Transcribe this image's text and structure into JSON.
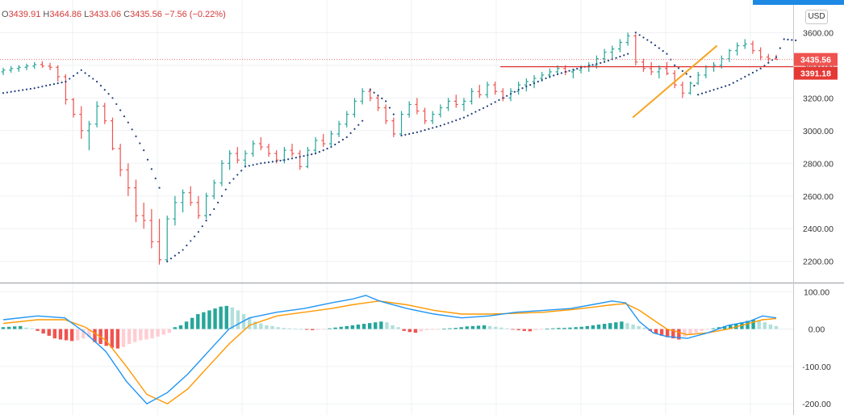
{
  "ohlc": {
    "open": "3439.91",
    "high": "3464.86",
    "low": "3433.06",
    "close": "3435.56",
    "change": "−7.56 (−0.22%)"
  },
  "currency_button": "USD",
  "price_tags": {
    "last_price": "3435.56",
    "horizontal_line": "3391.18"
  },
  "colors": {
    "up": "#26a69a",
    "down": "#ef5350",
    "sar": "#1f3d7a",
    "trendline": "#f5a623",
    "hline": "#e03030",
    "macd": "#2196f3",
    "signal": "#ff9800",
    "hist_up_strong": "#26a69a",
    "hist_up_weak": "#b2dfdb",
    "hist_down_strong": "#ef5350",
    "hist_down_weak": "#ffcdd2"
  },
  "chart_data": [
    {
      "type": "ohlc",
      "yaxis_ticks": [
        2200,
        2400,
        2600,
        2800,
        3000,
        3200,
        3400,
        3600
      ],
      "ylim": [
        2080,
        3760
      ],
      "last_price": 3435.56,
      "horizontal_line": 3391.18,
      "trendline": [
        [
          0.783,
          3080
        ],
        [
          0.913,
          3520
        ]
      ],
      "candles": [
        [
          3360,
          3385,
          3340,
          3370
        ],
        [
          3370,
          3395,
          3355,
          3380
        ],
        [
          3380,
          3400,
          3360,
          3388
        ],
        [
          3388,
          3410,
          3370,
          3395
        ],
        [
          3395,
          3420,
          3378,
          3405
        ],
        [
          3405,
          3425,
          3385,
          3395
        ],
        [
          3395,
          3415,
          3370,
          3388
        ],
        [
          3388,
          3400,
          3300,
          3330
        ],
        [
          3330,
          3345,
          3160,
          3190
        ],
        [
          3190,
          3200,
          3080,
          3100
        ],
        [
          3100,
          3150,
          2950,
          3000
        ],
        [
          3000,
          3060,
          2880,
          3040
        ],
        [
          3040,
          3180,
          3020,
          3150
        ],
        [
          3150,
          3170,
          3040,
          3060
        ],
        [
          3060,
          3080,
          2880,
          2890
        ],
        [
          2890,
          2920,
          2720,
          2760
        ],
        [
          2760,
          2800,
          2600,
          2650
        ],
        [
          2650,
          2700,
          2440,
          2480
        ],
        [
          2480,
          2560,
          2400,
          2450
        ],
        [
          2450,
          2520,
          2280,
          2320
        ],
        [
          2320,
          2460,
          2180,
          2210
        ],
        [
          2210,
          2480,
          2200,
          2460
        ],
        [
          2460,
          2600,
          2420,
          2560
        ],
        [
          2560,
          2640,
          2500,
          2620
        ],
        [
          2620,
          2660,
          2540,
          2560
        ],
        [
          2560,
          2600,
          2460,
          2480
        ],
        [
          2480,
          2620,
          2460,
          2600
        ],
        [
          2600,
          2700,
          2580,
          2680
        ],
        [
          2680,
          2820,
          2660,
          2800
        ],
        [
          2800,
          2880,
          2760,
          2860
        ],
        [
          2860,
          2900,
          2800,
          2820
        ],
        [
          2820,
          2880,
          2780,
          2860
        ],
        [
          2860,
          2940,
          2840,
          2920
        ],
        [
          2920,
          2960,
          2880,
          2900
        ],
        [
          2900,
          2920,
          2840,
          2860
        ],
        [
          2860,
          2880,
          2800,
          2820
        ],
        [
          2820,
          2900,
          2800,
          2880
        ],
        [
          2880,
          2920,
          2840,
          2860
        ],
        [
          2860,
          2880,
          2760,
          2780
        ],
        [
          2780,
          2900,
          2770,
          2880
        ],
        [
          2880,
          2960,
          2860,
          2940
        ],
        [
          2940,
          2980,
          2900,
          2920
        ],
        [
          2920,
          3000,
          2900,
          2980
        ],
        [
          2980,
          3060,
          2960,
          3040
        ],
        [
          3040,
          3120,
          3020,
          3100
        ],
        [
          3100,
          3200,
          3080,
          3180
        ],
        [
          3180,
          3260,
          3160,
          3240
        ],
        [
          3240,
          3260,
          3180,
          3200
        ],
        [
          3200,
          3220,
          3120,
          3140
        ],
        [
          3140,
          3160,
          3040,
          3060
        ],
        [
          3060,
          3080,
          2960,
          2980
        ],
        [
          2980,
          3120,
          2970,
          3100
        ],
        [
          3100,
          3180,
          3080,
          3160
        ],
        [
          3160,
          3200,
          3100,
          3120
        ],
        [
          3120,
          3140,
          3040,
          3060
        ],
        [
          3060,
          3120,
          3040,
          3100
        ],
        [
          3100,
          3160,
          3080,
          3140
        ],
        [
          3140,
          3200,
          3120,
          3180
        ],
        [
          3180,
          3220,
          3140,
          3160
        ],
        [
          3160,
          3200,
          3120,
          3180
        ],
        [
          3180,
          3260,
          3160,
          3240
        ],
        [
          3240,
          3280,
          3200,
          3220
        ],
        [
          3220,
          3300,
          3200,
          3280
        ],
        [
          3280,
          3300,
          3220,
          3240
        ],
        [
          3240,
          3260,
          3180,
          3200
        ],
        [
          3200,
          3260,
          3180,
          3240
        ],
        [
          3240,
          3300,
          3220,
          3280
        ],
        [
          3280,
          3320,
          3240,
          3300
        ],
        [
          3300,
          3340,
          3260,
          3320
        ],
        [
          3320,
          3360,
          3300,
          3340
        ],
        [
          3340,
          3380,
          3320,
          3360
        ],
        [
          3360,
          3400,
          3340,
          3380
        ],
        [
          3380,
          3400,
          3340,
          3360
        ],
        [
          3360,
          3380,
          3320,
          3370
        ],
        [
          3370,
          3400,
          3350,
          3390
        ],
        [
          3390,
          3420,
          3360,
          3400
        ],
        [
          3400,
          3460,
          3380,
          3440
        ],
        [
          3440,
          3500,
          3420,
          3480
        ],
        [
          3480,
          3520,
          3440,
          3500
        ],
        [
          3500,
          3560,
          3480,
          3540
        ],
        [
          3540,
          3600,
          3520,
          3580
        ],
        [
          3580,
          3590,
          3400,
          3420
        ],
        [
          3420,
          3440,
          3360,
          3380
        ],
        [
          3380,
          3420,
          3340,
          3360
        ],
        [
          3360,
          3400,
          3320,
          3380
        ],
        [
          3380,
          3420,
          3340,
          3350
        ],
        [
          3350,
          3370,
          3260,
          3280
        ],
        [
          3280,
          3300,
          3200,
          3230
        ],
        [
          3230,
          3300,
          3220,
          3290
        ],
        [
          3290,
          3360,
          3280,
          3340
        ],
        [
          3340,
          3400,
          3320,
          3390
        ],
        [
          3390,
          3420,
          3360,
          3400
        ],
        [
          3400,
          3460,
          3380,
          3440
        ],
        [
          3440,
          3500,
          3420,
          3490
        ],
        [
          3490,
          3540,
          3460,
          3520
        ],
        [
          3520,
          3560,
          3500,
          3530
        ],
        [
          3530,
          3550,
          3470,
          3490
        ],
        [
          3490,
          3510,
          3430,
          3450
        ],
        [
          3450,
          3470,
          3420,
          3440
        ],
        [
          3439.91,
          3464.86,
          3433.06,
          3435.56
        ]
      ],
      "sar": [
        [
          0,
          3230
        ],
        [
          4,
          3260
        ],
        [
          8,
          3300
        ],
        [
          10,
          3370
        ],
        [
          12,
          3300
        ],
        [
          14,
          3200
        ],
        [
          16,
          3050
        ],
        [
          18,
          2880
        ],
        [
          20,
          2650
        ],
        [
          21,
          2200
        ],
        [
          23,
          2270
        ],
        [
          25,
          2380
        ],
        [
          27,
          2520
        ],
        [
          29,
          2680
        ],
        [
          31,
          2780
        ],
        [
          33,
          2800
        ],
        [
          36,
          2820
        ],
        [
          38,
          2840
        ],
        [
          40,
          2860
        ],
        [
          42,
          2900
        ],
        [
          44,
          2960
        ],
        [
          46,
          3060
        ],
        [
          47,
          3250
        ],
        [
          49,
          3180
        ],
        [
          50,
          3100
        ],
        [
          51,
          2970
        ],
        [
          53,
          2990
        ],
        [
          56,
          3030
        ],
        [
          59,
          3080
        ],
        [
          62,
          3150
        ],
        [
          64,
          3200
        ],
        [
          66,
          3250
        ],
        [
          68,
          3290
        ],
        [
          70,
          3330
        ],
        [
          72,
          3360
        ],
        [
          74,
          3385
        ],
        [
          77,
          3420
        ],
        [
          80,
          3470
        ],
        [
          81,
          3600
        ],
        [
          83,
          3540
        ],
        [
          85,
          3470
        ],
        [
          86,
          3400
        ],
        [
          88,
          3330
        ],
        [
          89,
          3220
        ],
        [
          91,
          3250
        ],
        [
          93,
          3280
        ],
        [
          95,
          3330
        ],
        [
          97,
          3380
        ],
        [
          99,
          3450
        ],
        [
          100,
          3560
        ],
        [
          102,
          3550
        ]
      ]
    },
    {
      "type": "macd",
      "yaxis_ticks": [
        -200,
        -100,
        0,
        100
      ],
      "ylim": [
        -230,
        120
      ],
      "macd": [
        [
          0,
          25
        ],
        [
          5,
          35
        ],
        [
          9,
          30
        ],
        [
          12,
          -10
        ],
        [
          15,
          -60
        ],
        [
          18,
          -140
        ],
        [
          21,
          -200
        ],
        [
          24,
          -170
        ],
        [
          27,
          -120
        ],
        [
          30,
          -60
        ],
        [
          33,
          0
        ],
        [
          36,
          30
        ],
        [
          40,
          45
        ],
        [
          44,
          55
        ],
        [
          48,
          70
        ],
        [
          51,
          80
        ],
        [
          53,
          90
        ],
        [
          55,
          75
        ],
        [
          59,
          55
        ],
        [
          63,
          40
        ],
        [
          67,
          30
        ],
        [
          71,
          35
        ],
        [
          75,
          45
        ],
        [
          79,
          50
        ],
        [
          83,
          55
        ],
        [
          86,
          65
        ],
        [
          89,
          75
        ],
        [
          91,
          70
        ],
        [
          93,
          20
        ],
        [
          95,
          -10
        ],
        [
          97,
          -20
        ],
        [
          100,
          -25
        ],
        [
          103,
          -10
        ],
        [
          106,
          10
        ],
        [
          109,
          20
        ],
        [
          111,
          35
        ],
        [
          113,
          30
        ]
      ],
      "signal": [
        [
          0,
          15
        ],
        [
          5,
          25
        ],
        [
          9,
          25
        ],
        [
          12,
          5
        ],
        [
          15,
          -30
        ],
        [
          18,
          -100
        ],
        [
          21,
          -175
        ],
        [
          24,
          -200
        ],
        [
          27,
          -160
        ],
        [
          30,
          -100
        ],
        [
          33,
          -40
        ],
        [
          36,
          10
        ],
        [
          40,
          35
        ],
        [
          44,
          45
        ],
        [
          48,
          55
        ],
        [
          51,
          65
        ],
        [
          53,
          70
        ],
        [
          55,
          75
        ],
        [
          59,
          65
        ],
        [
          63,
          50
        ],
        [
          67,
          40
        ],
        [
          71,
          40
        ],
        [
          75,
          42
        ],
        [
          79,
          45
        ],
        [
          83,
          52
        ],
        [
          86,
          58
        ],
        [
          89,
          65
        ],
        [
          91,
          68
        ],
        [
          93,
          50
        ],
        [
          95,
          25
        ],
        [
          97,
          0
        ],
        [
          100,
          -15
        ],
        [
          103,
          -10
        ],
        [
          106,
          0
        ],
        [
          109,
          15
        ],
        [
          111,
          25
        ],
        [
          113,
          28
        ]
      ],
      "histogram": [
        5,
        6,
        7,
        8,
        4,
        2,
        -5,
        -12,
        -18,
        -25,
        -28,
        -30,
        -32,
        -30,
        -25,
        -22,
        -35,
        -40,
        -45,
        -50,
        -52,
        -48,
        -40,
        -35,
        -30,
        -28,
        -25,
        -20,
        -15,
        -10,
        5,
        10,
        20,
        30,
        40,
        45,
        50,
        55,
        60,
        62,
        58,
        50,
        40,
        30,
        20,
        15,
        10,
        8,
        5,
        3,
        2,
        1,
        0,
        -2,
        -3,
        -2,
        -1,
        2,
        4,
        6,
        8,
        10,
        12,
        14,
        16,
        18,
        20,
        18,
        10,
        5,
        -5,
        -8,
        -10,
        -6,
        -3,
        -2,
        -1,
        1,
        2,
        3,
        5,
        7,
        8,
        9,
        10,
        8,
        6,
        4,
        2,
        -1,
        -3,
        -5,
        -6,
        -3,
        -1,
        1,
        2,
        3,
        3,
        4,
        5,
        6,
        8,
        10,
        12,
        14,
        16,
        18,
        20,
        16,
        12,
        8,
        4,
        -5,
        -12,
        -18,
        -22,
        -25,
        -28,
        -20,
        -15,
        -10,
        -5,
        -2,
        2,
        5,
        8,
        10,
        14,
        18,
        22,
        25,
        22,
        18,
        12,
        8
      ]
    }
  ]
}
